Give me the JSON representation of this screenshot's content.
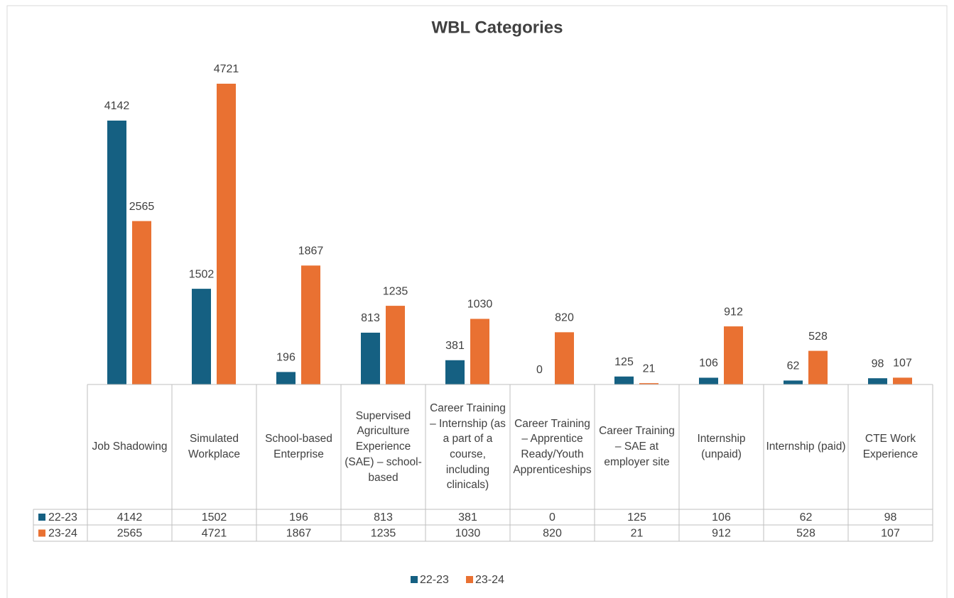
{
  "chart_data": {
    "type": "bar",
    "title": "WBL Categories",
    "categories": [
      "Job Shadowing",
      "Simulated Workplace",
      "School-based Enterprise",
      "Supervised Agriculture Experience (SAE) – school-based",
      "Career Training – Internship (as a part of a course, including clinicals)",
      "Career Training – Apprentice Ready/Youth Apprenticeships",
      "Career Training – SAE at employer site",
      "Internship (unpaid)",
      "Internship (paid)",
      "CTE Work Experience"
    ],
    "series": [
      {
        "name": "22-23",
        "color": "#156082",
        "values": [
          4142,
          1502,
          196,
          813,
          381,
          0,
          125,
          106,
          62,
          98
        ]
      },
      {
        "name": "23-24",
        "color": "#e97132",
        "values": [
          2565,
          4721,
          1867,
          1235,
          1030,
          820,
          21,
          912,
          528,
          107
        ]
      }
    ]
  }
}
